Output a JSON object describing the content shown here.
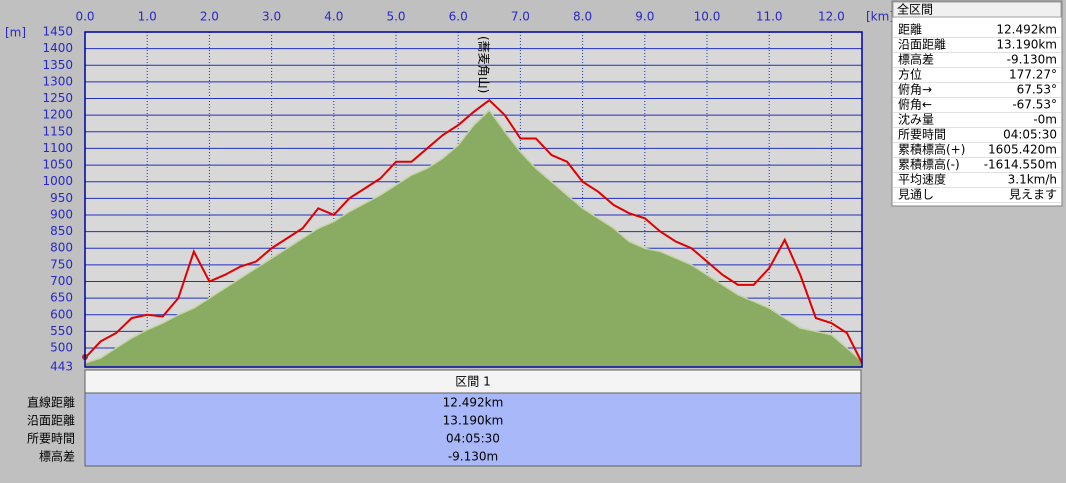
{
  "chart_data": {
    "type": "line",
    "x_unit": "[km]",
    "y_unit": "[m]",
    "xlim": [
      0,
      12.492
    ],
    "ylim": [
      443,
      1450
    ],
    "xticks": [
      {
        "value": 0,
        "label": "0.0"
      },
      {
        "value": 1,
        "label": "1.0"
      },
      {
        "value": 2,
        "label": "2.0"
      },
      {
        "value": 3,
        "label": "3.0"
      },
      {
        "value": 4,
        "label": "4.0"
      },
      {
        "value": 5,
        "label": "5.0"
      },
      {
        "value": 6,
        "label": "6.0"
      },
      {
        "value": 7,
        "label": "7.0"
      },
      {
        "value": 8,
        "label": "8.0"
      },
      {
        "value": 9,
        "label": "9.0"
      },
      {
        "value": 10,
        "label": "10.0"
      },
      {
        "value": 11,
        "label": "11.0"
      },
      {
        "value": 12,
        "label": "12.0"
      }
    ],
    "yticks": [
      443,
      500,
      550,
      600,
      650,
      700,
      750,
      800,
      850,
      900,
      950,
      1000,
      1050,
      1100,
      1150,
      1200,
      1250,
      1300,
      1350,
      1400,
      1450
    ],
    "grid": true,
    "x": [
      0,
      0.25,
      0.5,
      0.75,
      1,
      1.25,
      1.5,
      1.75,
      2,
      2.25,
      2.5,
      2.75,
      3,
      3.25,
      3.5,
      3.75,
      4,
      4.25,
      4.5,
      4.75,
      5,
      5.25,
      5.5,
      5.75,
      6,
      6.25,
      6.5,
      6.75,
      7,
      7.25,
      7.5,
      7.75,
      8,
      8.25,
      8.5,
      8.75,
      9,
      9.25,
      9.5,
      9.75,
      10,
      10.25,
      10.5,
      10.75,
      11,
      11.25,
      11.5,
      11.75,
      12,
      12.25,
      12.492
    ],
    "series": [
      {
        "kind": "area",
        "color": "#8aab62",
        "values": [
          455,
          470,
          500,
          530,
          555,
          575,
          600,
          620,
          650,
          680,
          710,
          740,
          770,
          800,
          830,
          860,
          880,
          910,
          935,
          960,
          990,
          1020,
          1040,
          1070,
          1110,
          1170,
          1215,
          1150,
          1090,
          1040,
          1000,
          960,
          920,
          890,
          860,
          820,
          800,
          790,
          770,
          750,
          720,
          690,
          660,
          640,
          620,
          590,
          560,
          550,
          540,
          500,
          460
        ]
      },
      {
        "kind": "line",
        "color": "#e00000",
        "values": [
          470,
          520,
          545,
          590,
          600,
          595,
          650,
          790,
          700,
          720,
          745,
          760,
          800,
          830,
          860,
          920,
          900,
          950,
          980,
          1010,
          1060,
          1060,
          1100,
          1140,
          1170,
          1210,
          1245,
          1200,
          1130,
          1130,
          1080,
          1060,
          1000,
          970,
          930,
          905,
          890,
          850,
          820,
          800,
          760,
          720,
          690,
          690,
          740,
          825,
          720,
          590,
          575,
          545,
          455
        ]
      }
    ],
    "annotations": [
      {
        "text": "(蕎麦角山)",
        "x": 6.4
      }
    ]
  },
  "summary_panel": {
    "title": "全区間",
    "rows": [
      [
        "距離",
        "12.492km"
      ],
      [
        "沿面距離",
        "13.190km"
      ],
      [
        "標高差",
        "-9.130m"
      ],
      [
        "方位",
        "177.27°"
      ],
      [
        "俯角→",
        "67.53°"
      ],
      [
        "俯角←",
        "-67.53°"
      ],
      [
        "沈み量",
        "-0m"
      ],
      [
        "所要時間",
        "04:05:30"
      ],
      [
        "累積標高(+)",
        "1605.420m"
      ],
      [
        "累積標高(-)",
        "-1614.550m"
      ],
      [
        "平均速度",
        "3.1km/h"
      ],
      [
        "見通し",
        "見えます"
      ]
    ]
  },
  "section_table": {
    "header": "区間 1",
    "rows": [
      [
        "直線距離",
        "12.492km"
      ],
      [
        "沿面距離",
        "13.190km"
      ],
      [
        "所要時間",
        "04:05:30"
      ],
      [
        "標高差",
        "-9.130m"
      ]
    ]
  }
}
